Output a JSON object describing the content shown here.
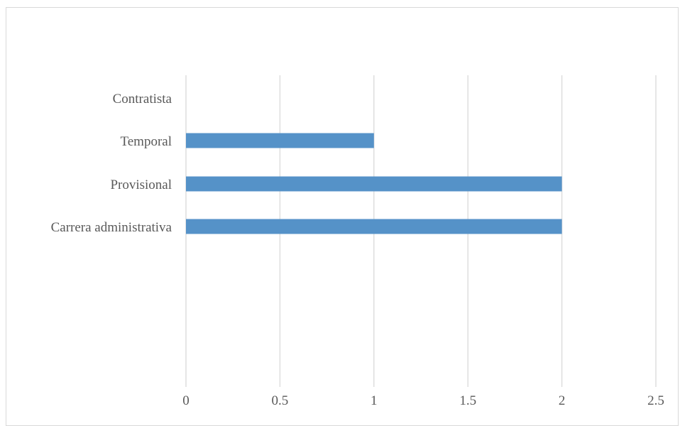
{
  "chart_data": {
    "type": "bar",
    "orientation": "horizontal",
    "categories": [
      "Contratista",
      "Temporal",
      "Provisional",
      "Carrera administrativa"
    ],
    "values": [
      0,
      1,
      2,
      2
    ],
    "xlim": [
      0,
      2.5
    ],
    "x_ticks": [
      "0",
      "0.5",
      "1",
      "1.5",
      "2",
      "2.5"
    ],
    "title": "",
    "xlabel": "",
    "ylabel": "",
    "grid": "vertical",
    "legend": "none",
    "colors": {
      "bar": "#5592c8",
      "grid": "#d9d9d9",
      "text": "#595959"
    }
  }
}
